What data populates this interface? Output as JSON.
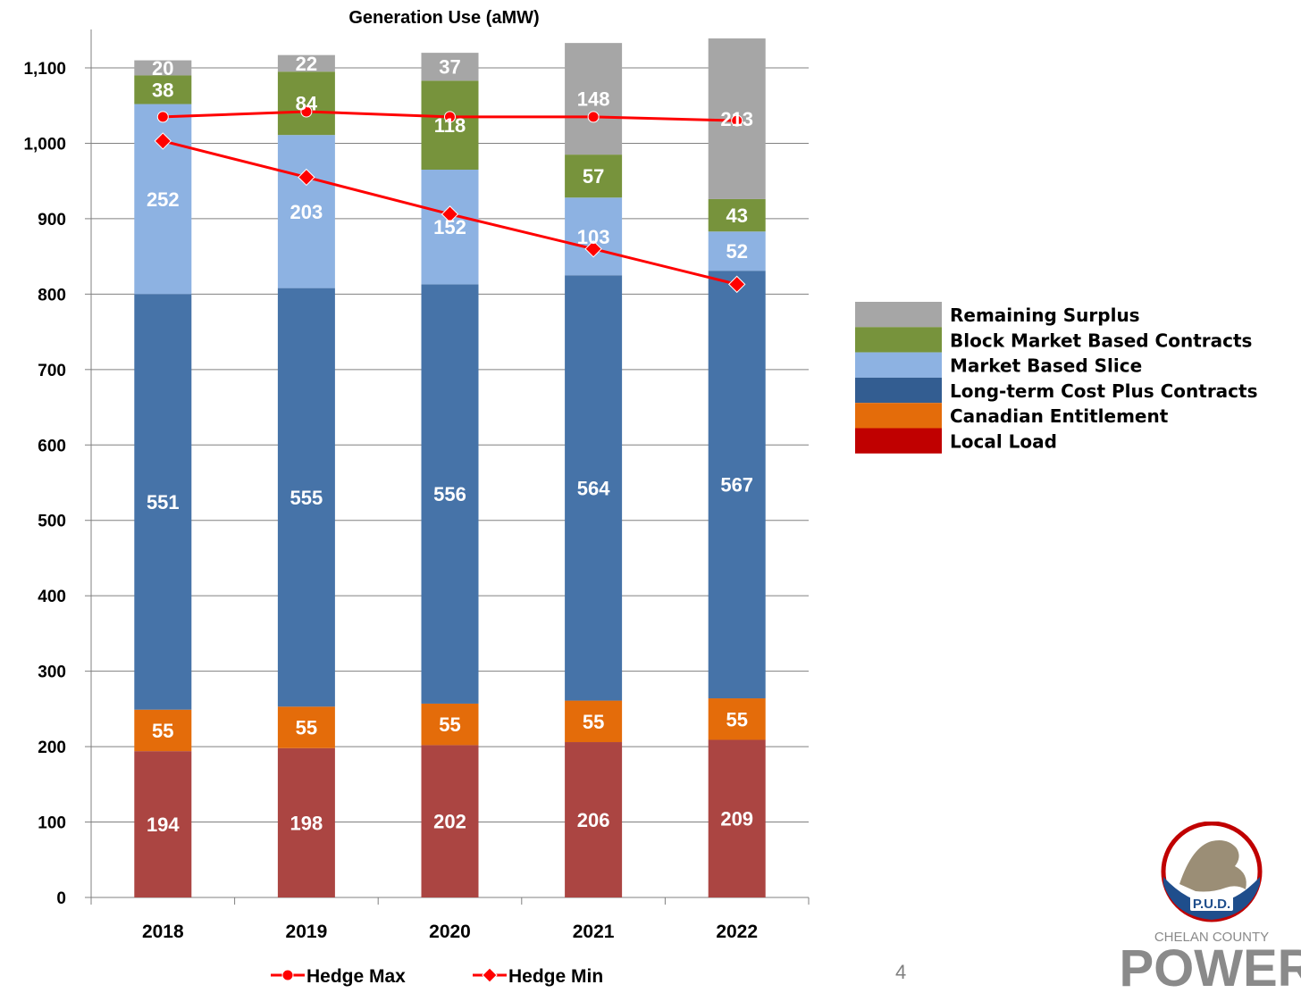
{
  "chart_data": {
    "type": "bar",
    "stacked": true,
    "title": "Generation Use (aMW)",
    "categories": [
      "2018",
      "2019",
      "2020",
      "2021",
      "2022"
    ],
    "ylim": [
      0,
      1100
    ],
    "yticks": [
      0,
      100,
      200,
      300,
      400,
      500,
      600,
      700,
      800,
      900,
      1000,
      1100
    ],
    "ytick_labels": [
      "0",
      "100",
      "200",
      "300",
      "400",
      "500",
      "600",
      "700",
      "800",
      "900",
      "1,000",
      "1,100"
    ],
    "grid": true,
    "legend_position": "right",
    "series": [
      {
        "name": "Local Load",
        "color": "#ab4542",
        "values": [
          194,
          198,
          202,
          206,
          209
        ]
      },
      {
        "name": "Canadian Entitlement",
        "color": "#e46c0a",
        "values": [
          55,
          55,
          55,
          55,
          55
        ]
      },
      {
        "name": "Long-term Cost Plus Contracts",
        "color": "#4673a8",
        "values": [
          551,
          555,
          556,
          564,
          567
        ]
      },
      {
        "name": "Market Based Slice",
        "color": "#8db2e2",
        "values": [
          252,
          203,
          152,
          103,
          52
        ]
      },
      {
        "name": "Block Market Based Contracts",
        "color": "#77933c",
        "values": [
          38,
          84,
          118,
          57,
          43
        ]
      },
      {
        "name": "Remaining Surplus",
        "color": "#a6a6a6",
        "values": [
          20,
          22,
          37,
          148,
          213
        ]
      }
    ],
    "legend_order": [
      "Remaining Surplus",
      "Block Market Based Contracts",
      "Market Based Slice",
      "Long-term Cost Plus Contracts",
      "Canadian Entitlement",
      "Local Load"
    ],
    "legend_colors": {
      "Remaining Surplus": "#a6a6a6",
      "Block Market Based Contracts": "#77933c",
      "Market Based Slice": "#8db2e2",
      "Long-term Cost Plus Contracts": "#335d91",
      "Canadian Entitlement": "#e46c0a",
      "Local Load": "#c00000"
    },
    "lines": [
      {
        "name": "Hedge Max",
        "color": "#ff0000",
        "marker": "circle",
        "values": [
          1035,
          1042,
          1035,
          1035,
          1030
        ]
      },
      {
        "name": "Hedge Min",
        "color": "#ff0000",
        "marker": "diamond",
        "values": [
          1003,
          955,
          906,
          860,
          813
        ]
      }
    ]
  },
  "page_number": "4",
  "logo": {
    "line1": "P.U.D.",
    "line2": "CHELAN COUNTY",
    "line3": "POWER"
  }
}
